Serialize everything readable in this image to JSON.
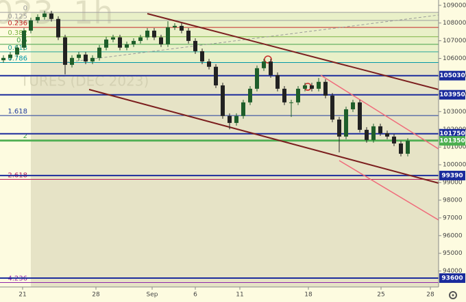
{
  "chart_data": {
    "type": "candlestick",
    "watermark": [
      "023, 1h",
      "TURES (DEC 2023)"
    ],
    "x": [
      0,
      1,
      2,
      3,
      4,
      5,
      6,
      7,
      8,
      9,
      10,
      11,
      12,
      13,
      14,
      15,
      16,
      17,
      18,
      19,
      20,
      21,
      22,
      23,
      24,
      25,
      26,
      27,
      28,
      29,
      30,
      31,
      32,
      33,
      34,
      35,
      36,
      37,
      38,
      39,
      40,
      41,
      42,
      43,
      44,
      45,
      46,
      47,
      48,
      49,
      50,
      51,
      52,
      53,
      54,
      55,
      56,
      57,
      58,
      59
    ],
    "open": [
      105900,
      106030,
      106220,
      106610,
      107570,
      108150,
      108340,
      108540,
      108230,
      107190,
      105640,
      106030,
      106220,
      105830,
      106030,
      106610,
      107070,
      107190,
      106610,
      106800,
      106990,
      107190,
      107570,
      107190,
      106800,
      107760,
      107840,
      107570,
      106990,
      106410,
      105830,
      105530,
      104480,
      102750,
      102360,
      102750,
      103520,
      104290,
      105450,
      105830,
      105060,
      104290,
      103520,
      103520,
      104290,
      104480,
      104290,
      104680,
      103900,
      102550,
      101590,
      103130,
      103520,
      101970,
      101400,
      102170,
      101780,
      101590,
      101200,
      100620
    ],
    "high": [
      106180,
      106370,
      106760,
      107720,
      108300,
      108490,
      108690,
      108690,
      108380,
      107340,
      106180,
      106370,
      106370,
      106180,
      106760,
      107220,
      107340,
      107340,
      106950,
      107140,
      107340,
      107720,
      107720,
      107340,
      108100,
      107990,
      107990,
      107720,
      107140,
      106560,
      105980,
      105680,
      104630,
      102900,
      102900,
      103670,
      104440,
      105600,
      105980,
      105980,
      105210,
      104440,
      103670,
      104440,
      104630,
      104630,
      104900,
      104830,
      104050,
      102700,
      103280,
      103670,
      103670,
      102120,
      102320,
      102320,
      101930,
      101740,
      101350,
      101500
    ],
    "low": [
      105750,
      105880,
      106070,
      106460,
      107420,
      108000,
      108190,
      108080,
      107040,
      105100,
      105490,
      105880,
      105680,
      105680,
      105880,
      106460,
      106920,
      106460,
      106460,
      106650,
      106840,
      107040,
      107040,
      106650,
      106650,
      107610,
      107420,
      106840,
      106260,
      105680,
      105380,
      104330,
      102600,
      102000,
      102210,
      102600,
      103370,
      104140,
      105300,
      104910,
      104140,
      103370,
      102700,
      103370,
      104140,
      104140,
      104140,
      103750,
      102400,
      100700,
      101440,
      102980,
      101820,
      101250,
      101250,
      101630,
      101440,
      101050,
      100470,
      100470
    ],
    "close": [
      106030,
      106220,
      106610,
      107570,
      108150,
      108340,
      108540,
      108230,
      107190,
      105640,
      106030,
      106220,
      105830,
      106030,
      106610,
      107070,
      107190,
      106610,
      106800,
      106990,
      107190,
      107570,
      107190,
      106800,
      107760,
      107840,
      107570,
      106990,
      106410,
      105830,
      105530,
      104480,
      102750,
      102360,
      102750,
      103520,
      104290,
      105450,
      105830,
      105060,
      104290,
      103520,
      103520,
      104290,
      104480,
      104290,
      104680,
      103900,
      102550,
      101590,
      103130,
      103520,
      101970,
      101400,
      102170,
      101780,
      101590,
      101200,
      100620,
      101350
    ],
    "up_color": "#1e5e2a",
    "down_color": "#222222",
    "xlim": [
      -0.5,
      63.5
    ],
    "xticks": [
      {
        "value": 2.8,
        "label": "21"
      },
      {
        "value": 13.5,
        "label": "28"
      },
      {
        "value": 21.7,
        "label": "Sep"
      },
      {
        "value": 28,
        "label": "6"
      },
      {
        "value": 34.5,
        "label": "11"
      },
      {
        "value": 44.5,
        "label": "18"
      },
      {
        "value": 55.1,
        "label": "25"
      },
      {
        "value": 62.3,
        "label": "28"
      }
    ],
    "ylim": [
      93100,
      109300
    ],
    "yticks": [
      94000,
      95000,
      96000,
      97000,
      98000,
      99000,
      100000,
      101000,
      102000,
      103000,
      104000,
      105000,
      106000,
      107000,
      108000,
      109000
    ],
    "fib_levels": [
      {
        "value": 108600,
        "label": "0",
        "color": "#9e9e9e"
      },
      {
        "value": 108150,
        "label": "0.125",
        "color": "#9e9e9e"
      },
      {
        "value": 107750,
        "label": "0.236",
        "color": "#c62828"
      },
      {
        "value": 107225,
        "label": "0.382",
        "color": "#7cb342"
      },
      {
        "value": 106800,
        "label": "0.5",
        "color": "#43a047"
      },
      {
        "value": 106375,
        "label": "0.618",
        "color": "#26a69a"
      },
      {
        "value": 105770,
        "label": "0.786",
        "color": "#0097a7"
      },
      {
        "value": 102775,
        "label": "1.618",
        "color": "#1e3a9c"
      },
      {
        "value": 101400,
        "label": "2",
        "color": "#43a047"
      },
      {
        "value": 99175,
        "label": "2.618",
        "color": "#b71c5c"
      },
      {
        "value": 93350,
        "label": "4.236",
        "color": "#8e24aa"
      }
    ],
    "zone_colors": [
      "#e9f0c8",
      "#e6e3c6"
    ],
    "levels": [
      {
        "value": 105030,
        "color": "#1a2b9c"
      },
      {
        "value": 103950,
        "color": "#1a2b9c"
      },
      {
        "value": 101750,
        "color": "#1a2b9c"
      },
      {
        "value": 101350,
        "color": "#4caf50"
      },
      {
        "value": 99390,
        "color": "#1a2b9c"
      },
      {
        "value": 93600,
        "color": "#1a2b9c"
      }
    ]
  }
}
